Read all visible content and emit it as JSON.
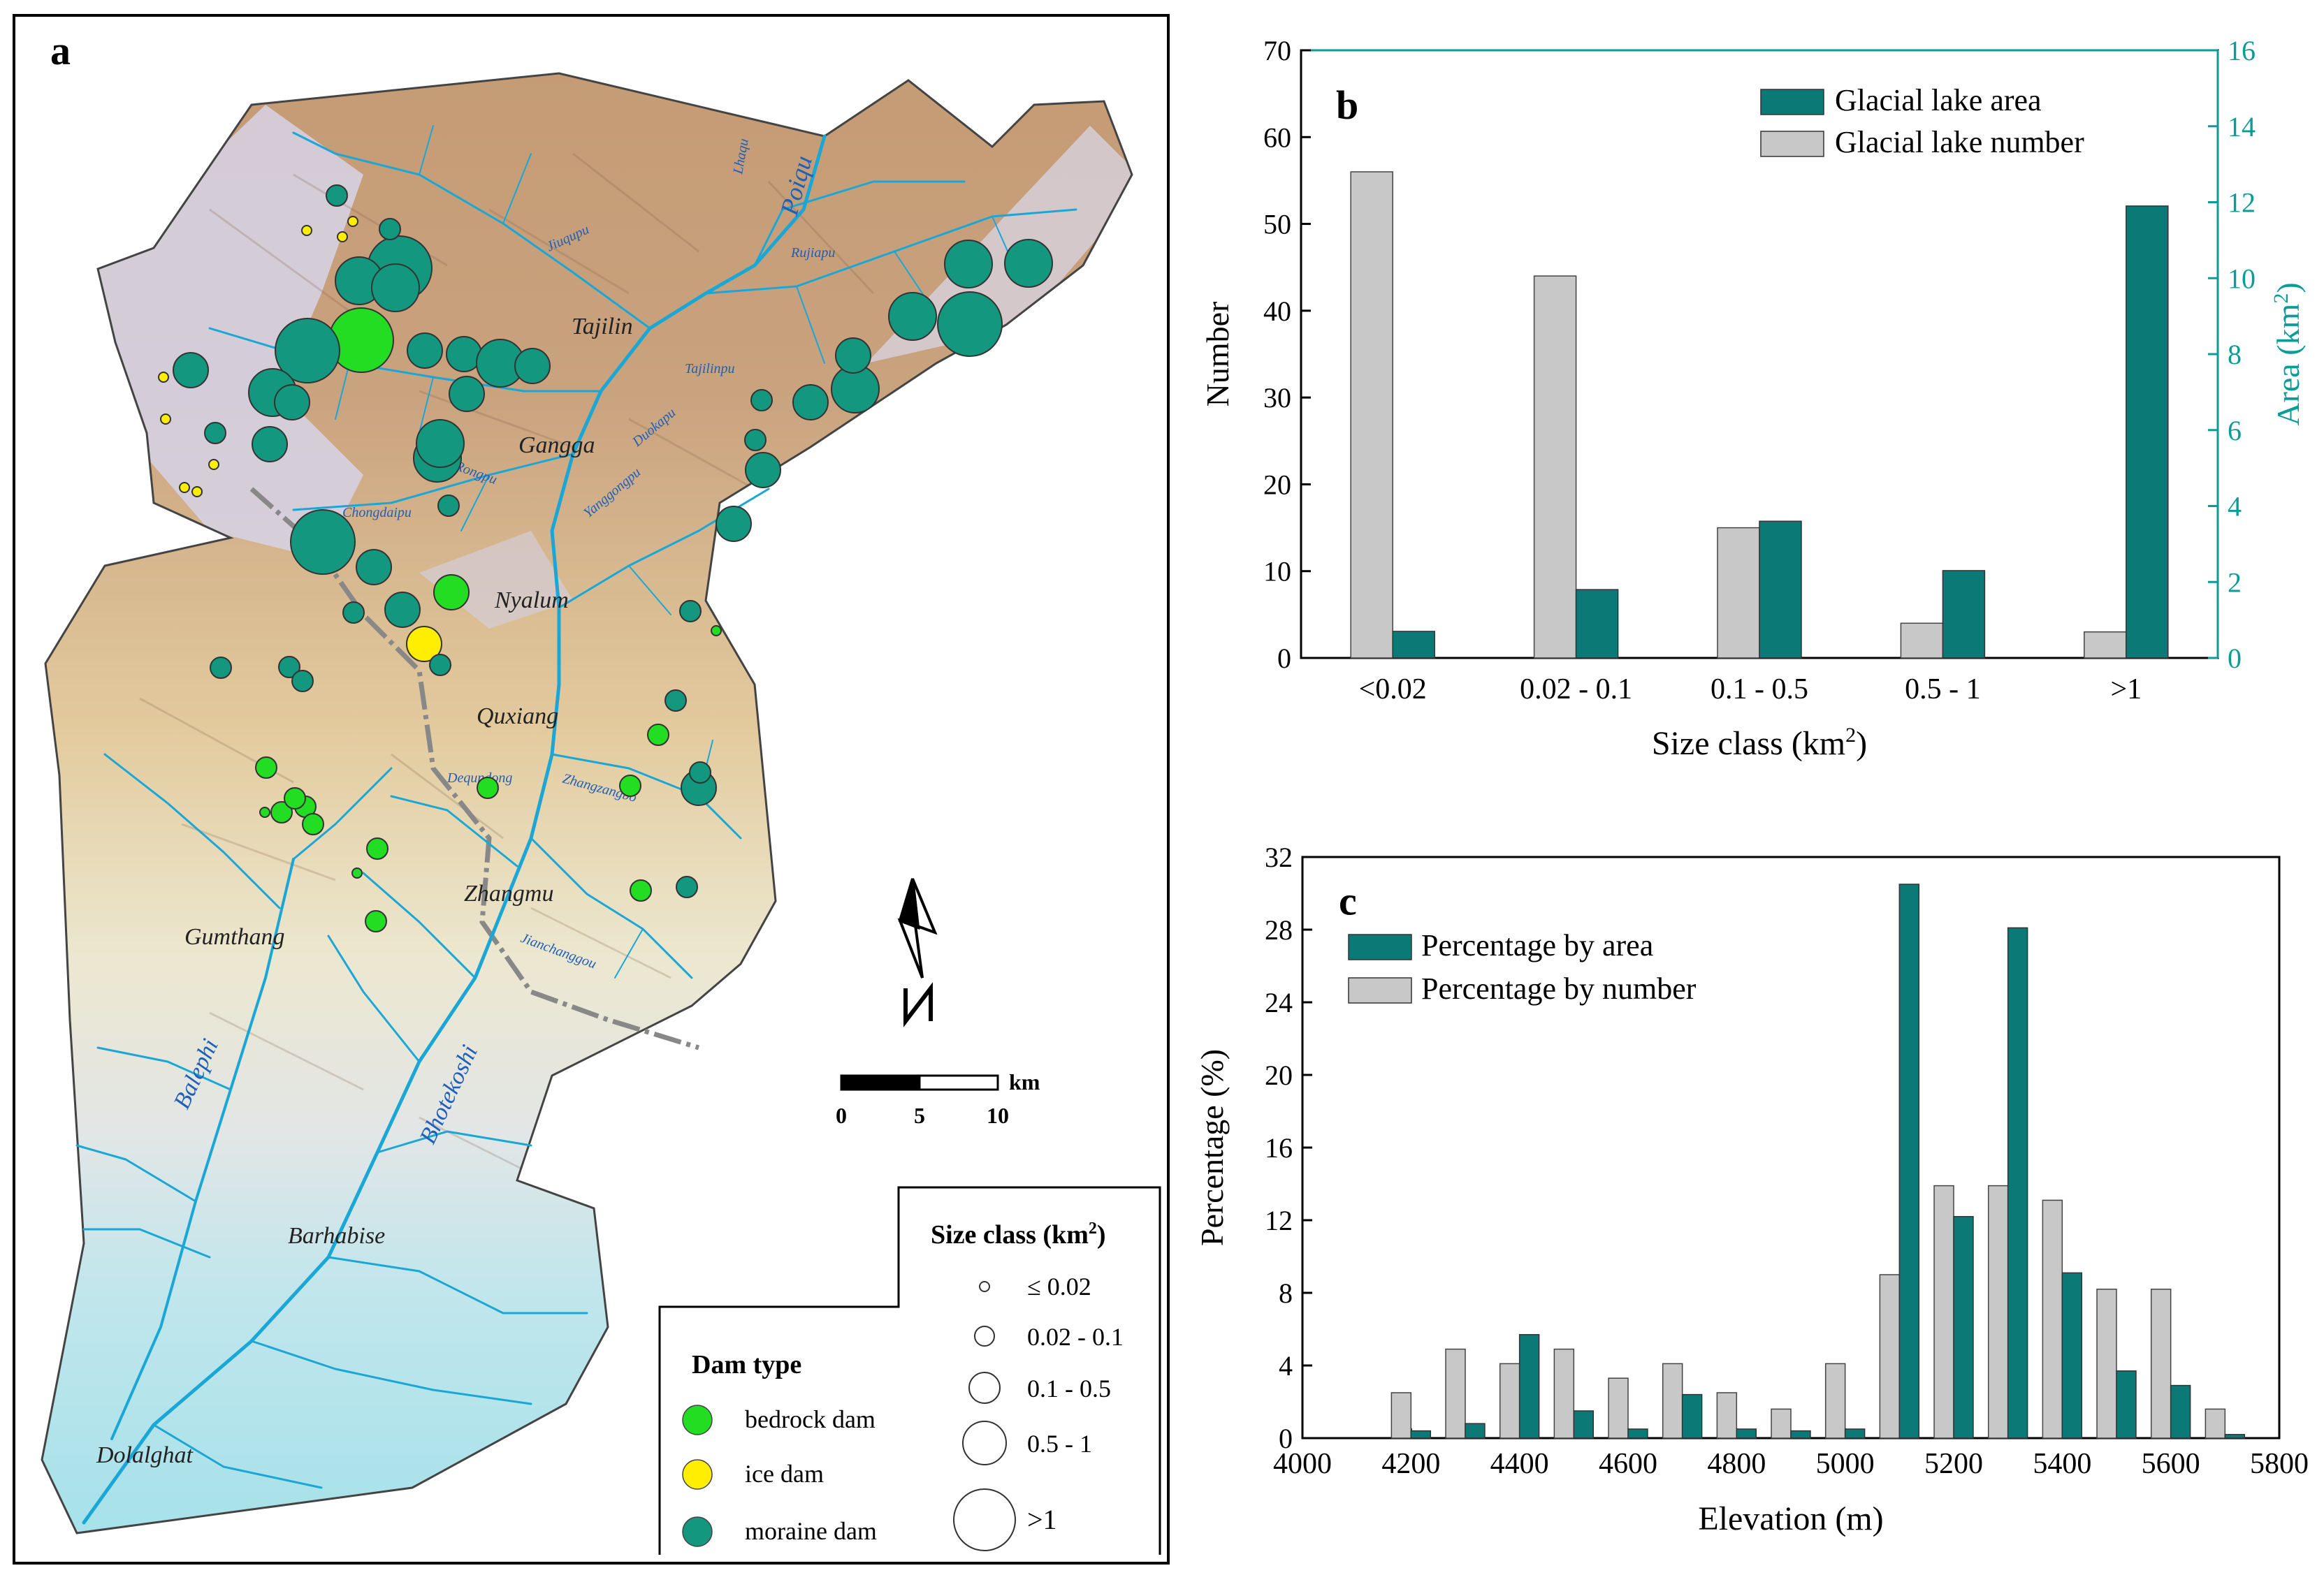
{
  "colors": {
    "teal": "#0b7a77",
    "gray": "#c8c8c8",
    "bedrock": "#22dd22",
    "ice": "#ffee00",
    "moraine": "#13977f",
    "river": "#1aa7d6",
    "river_label": "#1e5fb8",
    "axis_right": "#0b9c98"
  },
  "panel_a": {
    "letter": "a",
    "places": [
      "Tajilin",
      "Gangga",
      "Nyalum",
      "Quxiang",
      "Zhangmu",
      "Gumthang",
      "Barhabise",
      "Dolalghat"
    ],
    "rivers": [
      "Poiqu",
      "Lhaqu",
      "Rujiapu",
      "Jiuqupu",
      "Tajilinpu",
      "Duokapu",
      "Rongpu",
      "Yanggongpu",
      "Chongdaipu",
      "Dequndong",
      "Zhangzangbo",
      "Jianchanggou",
      "Balephi",
      "Bhotekoshi"
    ],
    "scale": {
      "unit": "km",
      "labels": [
        "0",
        "5",
        "10"
      ]
    },
    "legend_dam": {
      "title": "Dam type",
      "items": [
        "bedrock dam",
        "ice dam",
        "moraine dam"
      ]
    },
    "legend_size": {
      "title": "Size class (km",
      "sup": "2",
      "close": ")",
      "items": [
        "≤ 0.02",
        "0.02 - 0.1",
        "0.1 - 0.5",
        "0.5 - 1",
        ">1"
      ]
    },
    "lakes": [
      {
        "type": "moraine",
        "size": 2
      },
      {
        "type": "moraine",
        "size": 5
      },
      {
        "type": "moraine",
        "size": 4
      },
      {
        "type": "bedrock",
        "size": 5
      },
      {
        "type": "moraine",
        "size": 5
      },
      {
        "type": "moraine",
        "size": 4
      },
      {
        "type": "moraine",
        "size": 4
      },
      {
        "type": "moraine",
        "size": 3
      },
      {
        "type": "moraine",
        "size": 3
      },
      {
        "type": "moraine",
        "size": 3
      },
      {
        "type": "moraine",
        "size": 4
      },
      {
        "type": "moraine",
        "size": 3
      },
      {
        "type": "moraine",
        "size": 3
      },
      {
        "type": "moraine",
        "size": 4
      },
      {
        "type": "moraine",
        "size": 5
      },
      {
        "type": "moraine",
        "size": 5
      },
      {
        "type": "moraine",
        "size": 4
      },
      {
        "type": "moraine",
        "size": 4
      },
      {
        "type": "moraine",
        "size": 4
      },
      {
        "type": "moraine",
        "size": 3
      },
      {
        "type": "moraine",
        "size": 3
      },
      {
        "type": "moraine",
        "size": 3
      },
      {
        "type": "moraine",
        "size": 2
      },
      {
        "type": "moraine",
        "size": 3
      },
      {
        "type": "moraine",
        "size": 4
      },
      {
        "type": "moraine",
        "size": 3
      },
      {
        "type": "moraine",
        "size": 3
      },
      {
        "type": "moraine",
        "size": 2
      },
      {
        "type": "moraine",
        "size": 4
      },
      {
        "type": "moraine",
        "size": 3
      },
      {
        "type": "moraine",
        "size": 3
      },
      {
        "type": "moraine",
        "size": 2
      },
      {
        "type": "moraine",
        "size": 2
      },
      {
        "type": "moraine",
        "size": 2
      },
      {
        "type": "moraine",
        "size": 2
      },
      {
        "type": "bedrock",
        "size": 3
      },
      {
        "type": "ice",
        "size": 3
      },
      {
        "type": "moraine",
        "size": 2
      },
      {
        "type": "moraine",
        "size": 2
      },
      {
        "type": "bedrock",
        "size": 2
      },
      {
        "type": "bedrock",
        "size": 2
      },
      {
        "type": "bedrock",
        "size": 2
      },
      {
        "type": "bedrock",
        "size": 2
      },
      {
        "type": "bedrock",
        "size": 2
      },
      {
        "type": "bedrock",
        "size": 2
      },
      {
        "type": "bedrock",
        "size": 2
      },
      {
        "type": "bedrock",
        "size": 2
      },
      {
        "type": "bedrock",
        "size": 2
      },
      {
        "type": "moraine",
        "size": 3
      },
      {
        "type": "bedrock",
        "size": 2
      },
      {
        "type": "moraine",
        "size": 2
      },
      {
        "type": "moraine",
        "size": 2
      },
      {
        "type": "moraine",
        "size": 2
      },
      {
        "type": "bedrock",
        "size": 2
      },
      {
        "type": "bedrock",
        "size": 1
      },
      {
        "type": "ice",
        "size": 1
      },
      {
        "type": "ice",
        "size": 1
      },
      {
        "type": "ice",
        "size": 1
      },
      {
        "type": "ice",
        "size": 1
      },
      {
        "type": "ice",
        "size": 1
      },
      {
        "type": "ice",
        "size": 1
      },
      {
        "type": "ice",
        "size": 1
      },
      {
        "type": "ice",
        "size": 1
      },
      {
        "type": "bedrock",
        "size": 1
      },
      {
        "type": "bedrock",
        "size": 1
      },
      {
        "type": "moraine",
        "size": 2
      },
      {
        "type": "moraine",
        "size": 2
      },
      {
        "type": "moraine",
        "size": 2
      }
    ]
  },
  "chart_data": [
    {
      "panel": "b",
      "type": "bar",
      "categories": [
        "<0.02",
        "0.02 - 0.1",
        "0.1 - 0.5",
        "0.5 - 1",
        ">1"
      ],
      "series": [
        {
          "name": "Glacial lake area",
          "axis": "right",
          "values": [
            0.7,
            1.8,
            3.6,
            2.3,
            11.9
          ]
        },
        {
          "name": "Glacial lake number",
          "axis": "left",
          "values": [
            56,
            44,
            15,
            4,
            3
          ]
        }
      ],
      "xlabel": "Size class (km",
      "xlabel_sup": "2",
      "xlabel_close": ")",
      "ylabel": "Number",
      "ylabel_right": "Area (km",
      "ylabel_right_sup": "2",
      "ylabel_right_close": ")",
      "ylim": [
        0,
        70
      ],
      "ylim_right": [
        0,
        16
      ],
      "yticks": [
        "0",
        "10",
        "20",
        "30",
        "40",
        "50",
        "60",
        "70"
      ],
      "yticks_right": [
        "0",
        "2",
        "4",
        "6",
        "8",
        "10",
        "12",
        "14",
        "16"
      ],
      "legend": "top-right"
    },
    {
      "panel": "c",
      "type": "bar",
      "x": [
        4200,
        4300,
        4400,
        4500,
        4600,
        4700,
        4800,
        4900,
        5000,
        5100,
        5200,
        5300,
        5400,
        5500,
        5600,
        5700
      ],
      "series": [
        {
          "name": "Percentage by area",
          "values": [
            0.4,
            0.8,
            5.7,
            1.5,
            0.5,
            2.4,
            0.5,
            0.4,
            0.5,
            30.5,
            12.2,
            28.1,
            9.1,
            3.7,
            2.9,
            0.2
          ]
        },
        {
          "name": "Percentage by number",
          "values": [
            2.5,
            4.9,
            4.1,
            4.9,
            3.3,
            4.1,
            2.5,
            1.6,
            4.1,
            9.0,
            13.9,
            13.9,
            13.1,
            8.2,
            8.2,
            1.6
          ]
        }
      ],
      "xlabel": "Elevation (m)",
      "ylabel": "Percentage (%)",
      "xlim": [
        4000,
        5800
      ],
      "ylim": [
        0,
        32
      ],
      "xticks": [
        "4000",
        "4200",
        "4400",
        "4600",
        "4800",
        "5000",
        "5200",
        "5400",
        "5600",
        "5800"
      ],
      "yticks": [
        "0",
        "4",
        "8",
        "12",
        "16",
        "20",
        "24",
        "28",
        "32"
      ],
      "legend": "top-left"
    }
  ]
}
